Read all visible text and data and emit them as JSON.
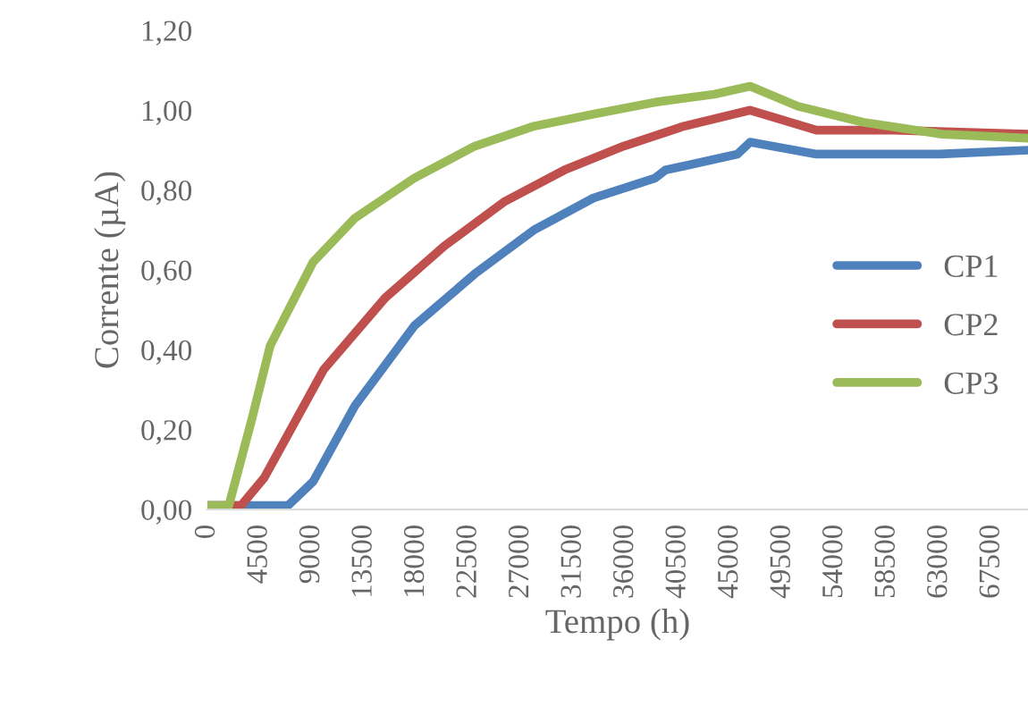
{
  "chart_data": {
    "type": "line",
    "xlabel": "Tempo (h)",
    "ylabel": "Corrente (µA)",
    "xlim": [
      0,
      70600
    ],
    "xticks": [
      0,
      4500,
      9000,
      13500,
      18000,
      22500,
      27000,
      31500,
      36000,
      40500,
      45000,
      49500,
      54000,
      58500,
      63000,
      67500
    ],
    "ylim": [
      0,
      1.2
    ],
    "yticks": [
      {
        "value": 0,
        "label": "0,00"
      },
      {
        "value": 0.2,
        "label": "0,20"
      },
      {
        "value": 0.4,
        "label": "0,40"
      },
      {
        "value": 0.6,
        "label": "0,60"
      },
      {
        "value": 0.8,
        "label": "0,80"
      },
      {
        "value": 1.0,
        "label": "1,00"
      },
      {
        "value": 1.2,
        "label": "1,20"
      }
    ],
    "legend": "right",
    "grid": false,
    "marker": "none",
    "line_style": "solid",
    "series": [
      {
        "name": "CP1",
        "color": "#4f81bd",
        "x": [
          0,
          6950,
          9100,
          12700,
          17800,
          23000,
          28100,
          33200,
          38500,
          39400,
          45600,
          46700,
          52400,
          63000,
          70600
        ],
        "values": [
          0.01,
          0.01,
          0.07,
          0.26,
          0.46,
          0.59,
          0.7,
          0.78,
          0.83,
          0.85,
          0.89,
          0.92,
          0.89,
          0.89,
          0.9
        ]
      },
      {
        "name": "CP2",
        "color": "#c0504d",
        "x": [
          0,
          2900,
          4900,
          10000,
          15300,
          20400,
          25500,
          30700,
          35800,
          41000,
          46700,
          52400,
          59000,
          70600
        ],
        "values": [
          0.01,
          0.01,
          0.08,
          0.35,
          0.53,
          0.66,
          0.77,
          0.85,
          0.91,
          0.96,
          1.0,
          0.95,
          0.95,
          0.94
        ]
      },
      {
        "name": "CP3",
        "color": "#9bbb59",
        "x": [
          0,
          1850,
          3860,
          5400,
          9100,
          12700,
          17800,
          23000,
          28100,
          33200,
          38500,
          43600,
          46700,
          50800,
          56400,
          63200,
          70600
        ],
        "values": [
          0.01,
          0.01,
          0.23,
          0.41,
          0.62,
          0.73,
          0.83,
          0.91,
          0.96,
          0.99,
          1.02,
          1.04,
          1.06,
          1.01,
          0.97,
          0.94,
          0.93
        ]
      }
    ]
  }
}
